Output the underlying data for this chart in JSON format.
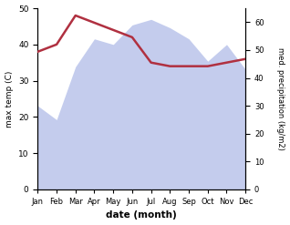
{
  "months": [
    "Jan",
    "Feb",
    "Mar",
    "Apr",
    "May",
    "Jun",
    "Jul",
    "Aug",
    "Sep",
    "Oct",
    "Nov",
    "Dec"
  ],
  "month_indices": [
    0,
    1,
    2,
    3,
    4,
    5,
    6,
    7,
    8,
    9,
    10,
    11
  ],
  "temp_max": [
    38,
    40,
    48,
    46,
    44,
    42,
    35,
    34,
    34,
    34,
    35,
    36
  ],
  "precipitation": [
    30,
    25,
    44,
    54,
    52,
    59,
    61,
    58,
    54,
    46,
    52,
    43
  ],
  "temp_ylim": [
    0,
    50
  ],
  "precip_ylim": [
    0,
    65
  ],
  "temp_yticks": [
    0,
    10,
    20,
    30,
    40,
    50
  ],
  "precip_yticks": [
    0,
    10,
    20,
    30,
    40,
    50,
    60
  ],
  "xlabel": "date (month)",
  "ylabel_left": "max temp (C)",
  "ylabel_right": "med. precipitation (kg/m2)",
  "fill_color": "#b0bce8",
  "fill_alpha": 0.75,
  "line_color": "#b03040",
  "line_width": 1.8,
  "background_color": "#ffffff"
}
